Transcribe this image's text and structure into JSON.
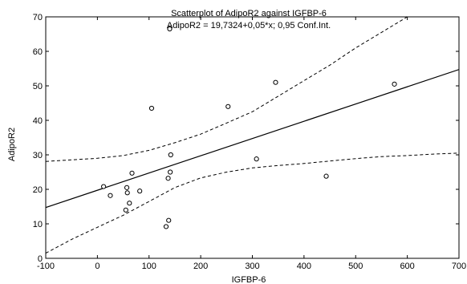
{
  "chart_data": {
    "type": "scatter",
    "title": "Scatterplot of AdipoR2 against IGFBP-6",
    "subtitle": "AdipoR2 = 19,7324+0,05*x; 0,95 Conf.Int.",
    "xlabel": "IGFBP-6",
    "ylabel": "AdipoR2",
    "xlim": [
      -100,
      700
    ],
    "ylim": [
      0,
      70
    ],
    "xticks": [
      -100,
      0,
      100,
      200,
      300,
      400,
      500,
      600,
      700
    ],
    "yticks": [
      0,
      10,
      20,
      30,
      40,
      50,
      60,
      70
    ],
    "grid": false,
    "points": [
      {
        "x": 12,
        "y": 20.8
      },
      {
        "x": 25,
        "y": 18.2
      },
      {
        "x": 55,
        "y": 14
      },
      {
        "x": 57,
        "y": 20.5
      },
      {
        "x": 58,
        "y": 19
      },
      {
        "x": 62,
        "y": 16
      },
      {
        "x": 67,
        "y": 24.7
      },
      {
        "x": 82,
        "y": 19.5
      },
      {
        "x": 105,
        "y": 43.5
      },
      {
        "x": 133,
        "y": 9.2
      },
      {
        "x": 137,
        "y": 23.2
      },
      {
        "x": 138,
        "y": 11
      },
      {
        "x": 140,
        "y": 66.5
      },
      {
        "x": 141,
        "y": 25
      },
      {
        "x": 142,
        "y": 30
      },
      {
        "x": 253,
        "y": 44
      },
      {
        "x": 308,
        "y": 28.8
      },
      {
        "x": 345,
        "y": 51
      },
      {
        "x": 443,
        "y": 23.8
      },
      {
        "x": 575,
        "y": 50.5
      }
    ],
    "fit_line": {
      "intercept": 19.7324,
      "slope": 0.05
    },
    "conf_upper": [
      {
        "x": -100,
        "y": 28.1
      },
      {
        "x": 0,
        "y": 29.0
      },
      {
        "x": 50,
        "y": 29.8
      },
      {
        "x": 100,
        "y": 31.3
      },
      {
        "x": 150,
        "y": 33.5
      },
      {
        "x": 200,
        "y": 36.0
      },
      {
        "x": 250,
        "y": 39.2
      },
      {
        "x": 300,
        "y": 42.5
      },
      {
        "x": 350,
        "y": 47.0
      },
      {
        "x": 400,
        "y": 51.5
      },
      {
        "x": 450,
        "y": 56.0
      },
      {
        "x": 500,
        "y": 61.0
      },
      {
        "x": 550,
        "y": 65.5
      },
      {
        "x": 600,
        "y": 70.0
      }
    ],
    "conf_lower": [
      {
        "x": -100,
        "y": 1.5
      },
      {
        "x": -50,
        "y": 5.5
      },
      {
        "x": 0,
        "y": 9.0
      },
      {
        "x": 50,
        "y": 12.5
      },
      {
        "x": 100,
        "y": 16.5
      },
      {
        "x": 150,
        "y": 20.5
      },
      {
        "x": 200,
        "y": 23.3
      },
      {
        "x": 250,
        "y": 25.0
      },
      {
        "x": 300,
        "y": 26.2
      },
      {
        "x": 350,
        "y": 26.9
      },
      {
        "x": 400,
        "y": 27.5
      },
      {
        "x": 450,
        "y": 28.2
      },
      {
        "x": 500,
        "y": 28.9
      },
      {
        "x": 550,
        "y": 29.5
      },
      {
        "x": 600,
        "y": 29.8
      },
      {
        "x": 650,
        "y": 30.2
      },
      {
        "x": 700,
        "y": 30.5
      }
    ]
  }
}
